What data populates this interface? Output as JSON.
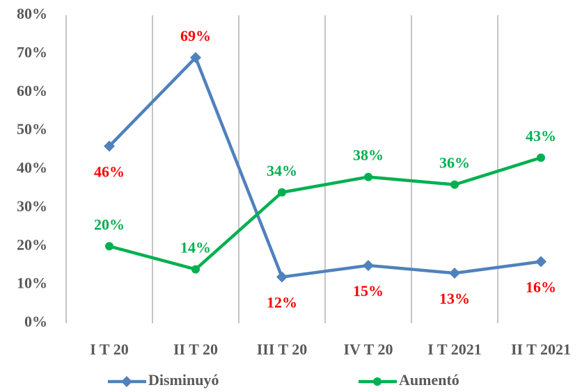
{
  "chart_data": {
    "type": "line",
    "categories": [
      "I T 20",
      "II T 20",
      "III T 20",
      "IV T 20",
      "I T 2021",
      "II T 2021"
    ],
    "series": [
      {
        "name": "Disminuyó",
        "color": "#4f81bd",
        "marker": "diamond",
        "label_color": "#ff0000",
        "values": [
          46,
          69,
          12,
          15,
          13,
          16
        ],
        "value_labels": [
          "46%",
          "69%",
          "12%",
          "15%",
          "13%",
          "16%"
        ],
        "label_positions": [
          "below",
          "above",
          "below",
          "below",
          "below",
          "below"
        ]
      },
      {
        "name": "Aumentó",
        "color": "#00b050",
        "marker": "circle",
        "label_color": "#00b050",
        "values": [
          20,
          14,
          34,
          38,
          36,
          43
        ],
        "value_labels": [
          "20%",
          "14%",
          "34%",
          "38%",
          "36%",
          "43%"
        ],
        "label_positions": [
          "above",
          "above",
          "above",
          "above",
          "above",
          "above"
        ]
      }
    ],
    "ylim": [
      0,
      80
    ],
    "yticks": [
      {
        "value": 0,
        "label": "0%"
      },
      {
        "value": 10,
        "label": "10%"
      },
      {
        "value": 20,
        "label": "20%"
      },
      {
        "value": 30,
        "label": "30%"
      },
      {
        "value": 40,
        "label": "40%"
      },
      {
        "value": 50,
        "label": "50%"
      },
      {
        "value": 60,
        "label": "60%"
      },
      {
        "value": 70,
        "label": "70%"
      },
      {
        "value": 80,
        "label": "80%"
      }
    ],
    "category_grid": true,
    "legend": "bottom"
  }
}
